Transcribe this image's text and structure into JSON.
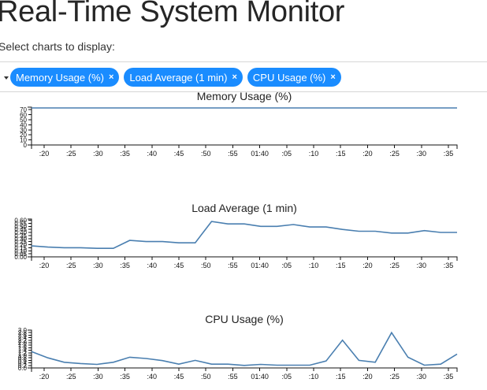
{
  "page": {
    "title": "Real-Time System Monitor",
    "select_label": "Select charts to display:"
  },
  "selector": {
    "chips": [
      {
        "label": "Memory Usage (%)",
        "remove_icon": "×"
      },
      {
        "label": "Load Average (1 min)",
        "remove_icon": "×"
      },
      {
        "label": "CPU Usage (%)",
        "remove_icon": "×"
      }
    ],
    "accent_color": "#1a8cff"
  },
  "chart_data": [
    {
      "type": "line",
      "title": "Memory Usage (%)",
      "x_tick_labels": [
        ":20",
        ":25",
        ":30",
        ":35",
        ":40",
        ":45",
        ":50",
        ":55",
        "01:40",
        ":05",
        ":10",
        ":15",
        ":20",
        ":25",
        ":30",
        ":35"
      ],
      "y_tick_labels": [
        "0",
        "10",
        "20",
        "30",
        "40",
        "50",
        "60",
        "70"
      ],
      "ylim": [
        0,
        75
      ],
      "values": [
        73.5,
        73.5,
        73.5,
        73.5,
        73.5,
        73.5,
        73.5,
        73.5,
        73.5,
        73.5,
        73.5,
        73.5,
        73.5,
        73.5,
        73.5,
        73.5,
        73.5,
        73.5,
        73.5,
        73.5,
        73.5,
        73.5,
        73.5,
        73.5,
        73.5,
        73.5,
        73.5,
        73.5,
        73.5,
        73.5,
        73.5,
        73.5,
        73.5
      ],
      "line_color": "#4a7fb0"
    },
    {
      "type": "line",
      "title": "Load Average (1 min)",
      "x_tick_labels": [
        ":20",
        ":25",
        ":30",
        ":35",
        ":40",
        ":45",
        ":50",
        ":55",
        "01:40",
        ":05",
        ":10",
        ":15",
        ":20",
        ":25",
        ":30",
        ":35"
      ],
      "y_tick_labels": [
        "0.00",
        "0.05",
        "0.10",
        "0.15",
        "0.20",
        "0.25",
        "0.30",
        "0.35",
        "0.40",
        "0.45",
        "0.50",
        "0.55",
        "0.60"
      ],
      "ylim": [
        0,
        0.62
      ],
      "values": [
        0.18,
        0.16,
        0.15,
        0.15,
        0.14,
        0.14,
        0.27,
        0.25,
        0.25,
        0.23,
        0.23,
        0.58,
        0.54,
        0.54,
        0.5,
        0.5,
        0.53,
        0.49,
        0.49,
        0.45,
        0.42,
        0.42,
        0.39,
        0.39,
        0.43,
        0.4,
        0.4
      ],
      "line_color": "#4a7fb0"
    },
    {
      "type": "line",
      "title": "CPU Usage (%)",
      "x_tick_labels": [
        ":20",
        ":25",
        ":30",
        ":35",
        ":40",
        ":45",
        ":50",
        ":55",
        "01:40",
        ":05",
        ":10",
        ":15",
        ":20",
        ":25",
        ":30",
        ":35"
      ],
      "y_tick_labels": [
        "0.0",
        "0.2",
        "0.4",
        "0.6",
        "0.8",
        "1.0",
        "1.2",
        "1.4",
        "1.6",
        "1.8",
        "2.0",
        "2.2",
        "2.4",
        "2.6",
        "2.8",
        "3.0"
      ],
      "ylim": [
        0,
        3.0
      ],
      "values": [
        1.3,
        0.8,
        0.45,
        0.35,
        0.28,
        0.45,
        0.85,
        0.75,
        0.58,
        0.3,
        0.6,
        0.3,
        0.3,
        0.2,
        0.28,
        0.22,
        0.22,
        0.22,
        0.55,
        2.2,
        0.6,
        0.45,
        2.8,
        0.85,
        0.22,
        0.3,
        1.1
      ],
      "line_color": "#4a7fb0"
    }
  ]
}
